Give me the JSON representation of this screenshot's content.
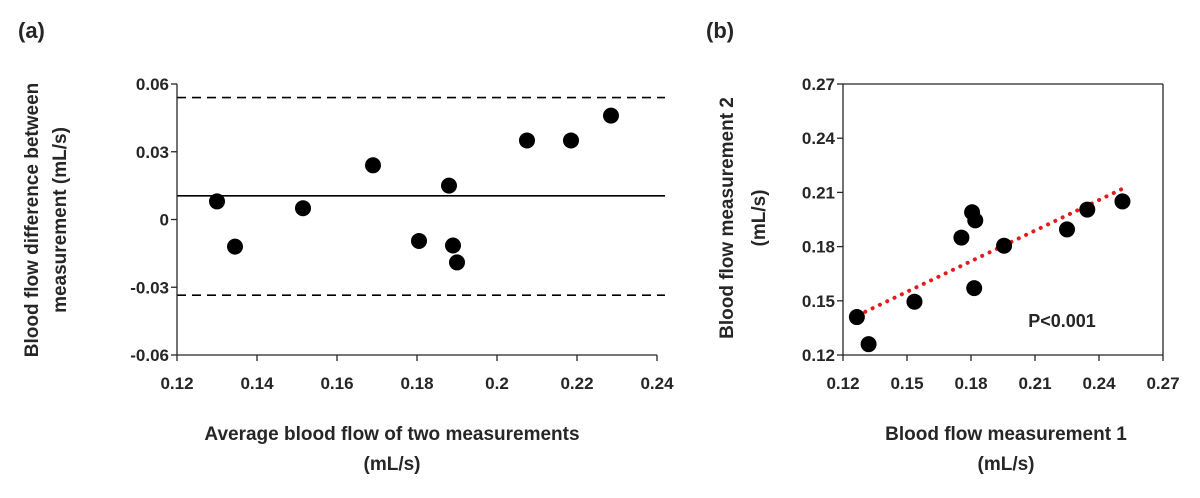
{
  "chart_data": [
    {
      "type": "scatter",
      "panel_label": "(a)",
      "title": "",
      "xlabel_lines": [
        "Average blood flow of two measurements",
        "(mL/s)"
      ],
      "ylabel_lines": [
        "Blood flow difference between",
        "measurement (mL/s)"
      ],
      "xlim": [
        0.12,
        0.24
      ],
      "ylim": [
        -0.06,
        0.06
      ],
      "xticks": [
        0.12,
        0.14,
        0.16,
        0.18,
        0.2,
        0.22,
        0.24
      ],
      "xtick_labels": [
        "0.12",
        "0.14",
        "0.16",
        "0.18",
        "0.2",
        "0.22",
        "0.24"
      ],
      "yticks": [
        -0.06,
        -0.03,
        0,
        0.03,
        0.06
      ],
      "ytick_labels": [
        "-0.06",
        "-0.03",
        "0",
        "0.03",
        "0.06"
      ],
      "grid": false,
      "reference_lines": [
        {
          "name": "upper-limit",
          "y": 0.054,
          "style": "dashed"
        },
        {
          "name": "mean-difference",
          "y": 0.0105,
          "style": "solid"
        },
        {
          "name": "lower-limit",
          "y": -0.0335,
          "style": "dashed"
        }
      ],
      "points": [
        {
          "x": 0.13,
          "y": 0.008
        },
        {
          "x": 0.1345,
          "y": -0.012
        },
        {
          "x": 0.1515,
          "y": 0.005
        },
        {
          "x": 0.169,
          "y": 0.024
        },
        {
          "x": 0.1805,
          "y": -0.0095
        },
        {
          "x": 0.188,
          "y": 0.015
        },
        {
          "x": 0.189,
          "y": -0.0115
        },
        {
          "x": 0.19,
          "y": -0.019
        },
        {
          "x": 0.2075,
          "y": 0.035
        },
        {
          "x": 0.2185,
          "y": 0.035
        },
        {
          "x": 0.2285,
          "y": 0.046
        }
      ]
    },
    {
      "type": "scatter",
      "panel_label": "(b)",
      "title": "",
      "xlabel_lines": [
        "Blood flow measurement 1",
        "(mL/s)"
      ],
      "ylabel_lines": [
        "Blood flow measurement 2",
        "(mL/s)"
      ],
      "xlim": [
        0.12,
        0.27
      ],
      "ylim": [
        0.12,
        0.27
      ],
      "xticks": [
        0.12,
        0.15,
        0.18,
        0.21,
        0.24,
        0.27
      ],
      "xtick_labels": [
        "0.12",
        "0.15",
        "0.18",
        "0.21",
        "0.24",
        "0.27"
      ],
      "yticks": [
        0.12,
        0.15,
        0.18,
        0.21,
        0.24,
        0.27
      ],
      "ytick_labels": [
        "0.12",
        "0.15",
        "0.18",
        "0.21",
        "0.24",
        "0.27"
      ],
      "grid": false,
      "annotation": "P<0.001",
      "trendline": {
        "style": "dotted",
        "color": "#e41a1c",
        "x": [
          0.127,
          0.251
        ],
        "y": [
          0.142,
          0.212
        ]
      },
      "points": [
        {
          "x": 0.1265,
          "y": 0.141
        },
        {
          "x": 0.132,
          "y": 0.126
        },
        {
          "x": 0.1535,
          "y": 0.1495
        },
        {
          "x": 0.1755,
          "y": 0.185
        },
        {
          "x": 0.1805,
          "y": 0.199
        },
        {
          "x": 0.182,
          "y": 0.1945
        },
        {
          "x": 0.1815,
          "y": 0.157
        },
        {
          "x": 0.1955,
          "y": 0.1805
        },
        {
          "x": 0.225,
          "y": 0.1895
        },
        {
          "x": 0.2345,
          "y": 0.2005
        },
        {
          "x": 0.251,
          "y": 0.205
        }
      ]
    }
  ]
}
